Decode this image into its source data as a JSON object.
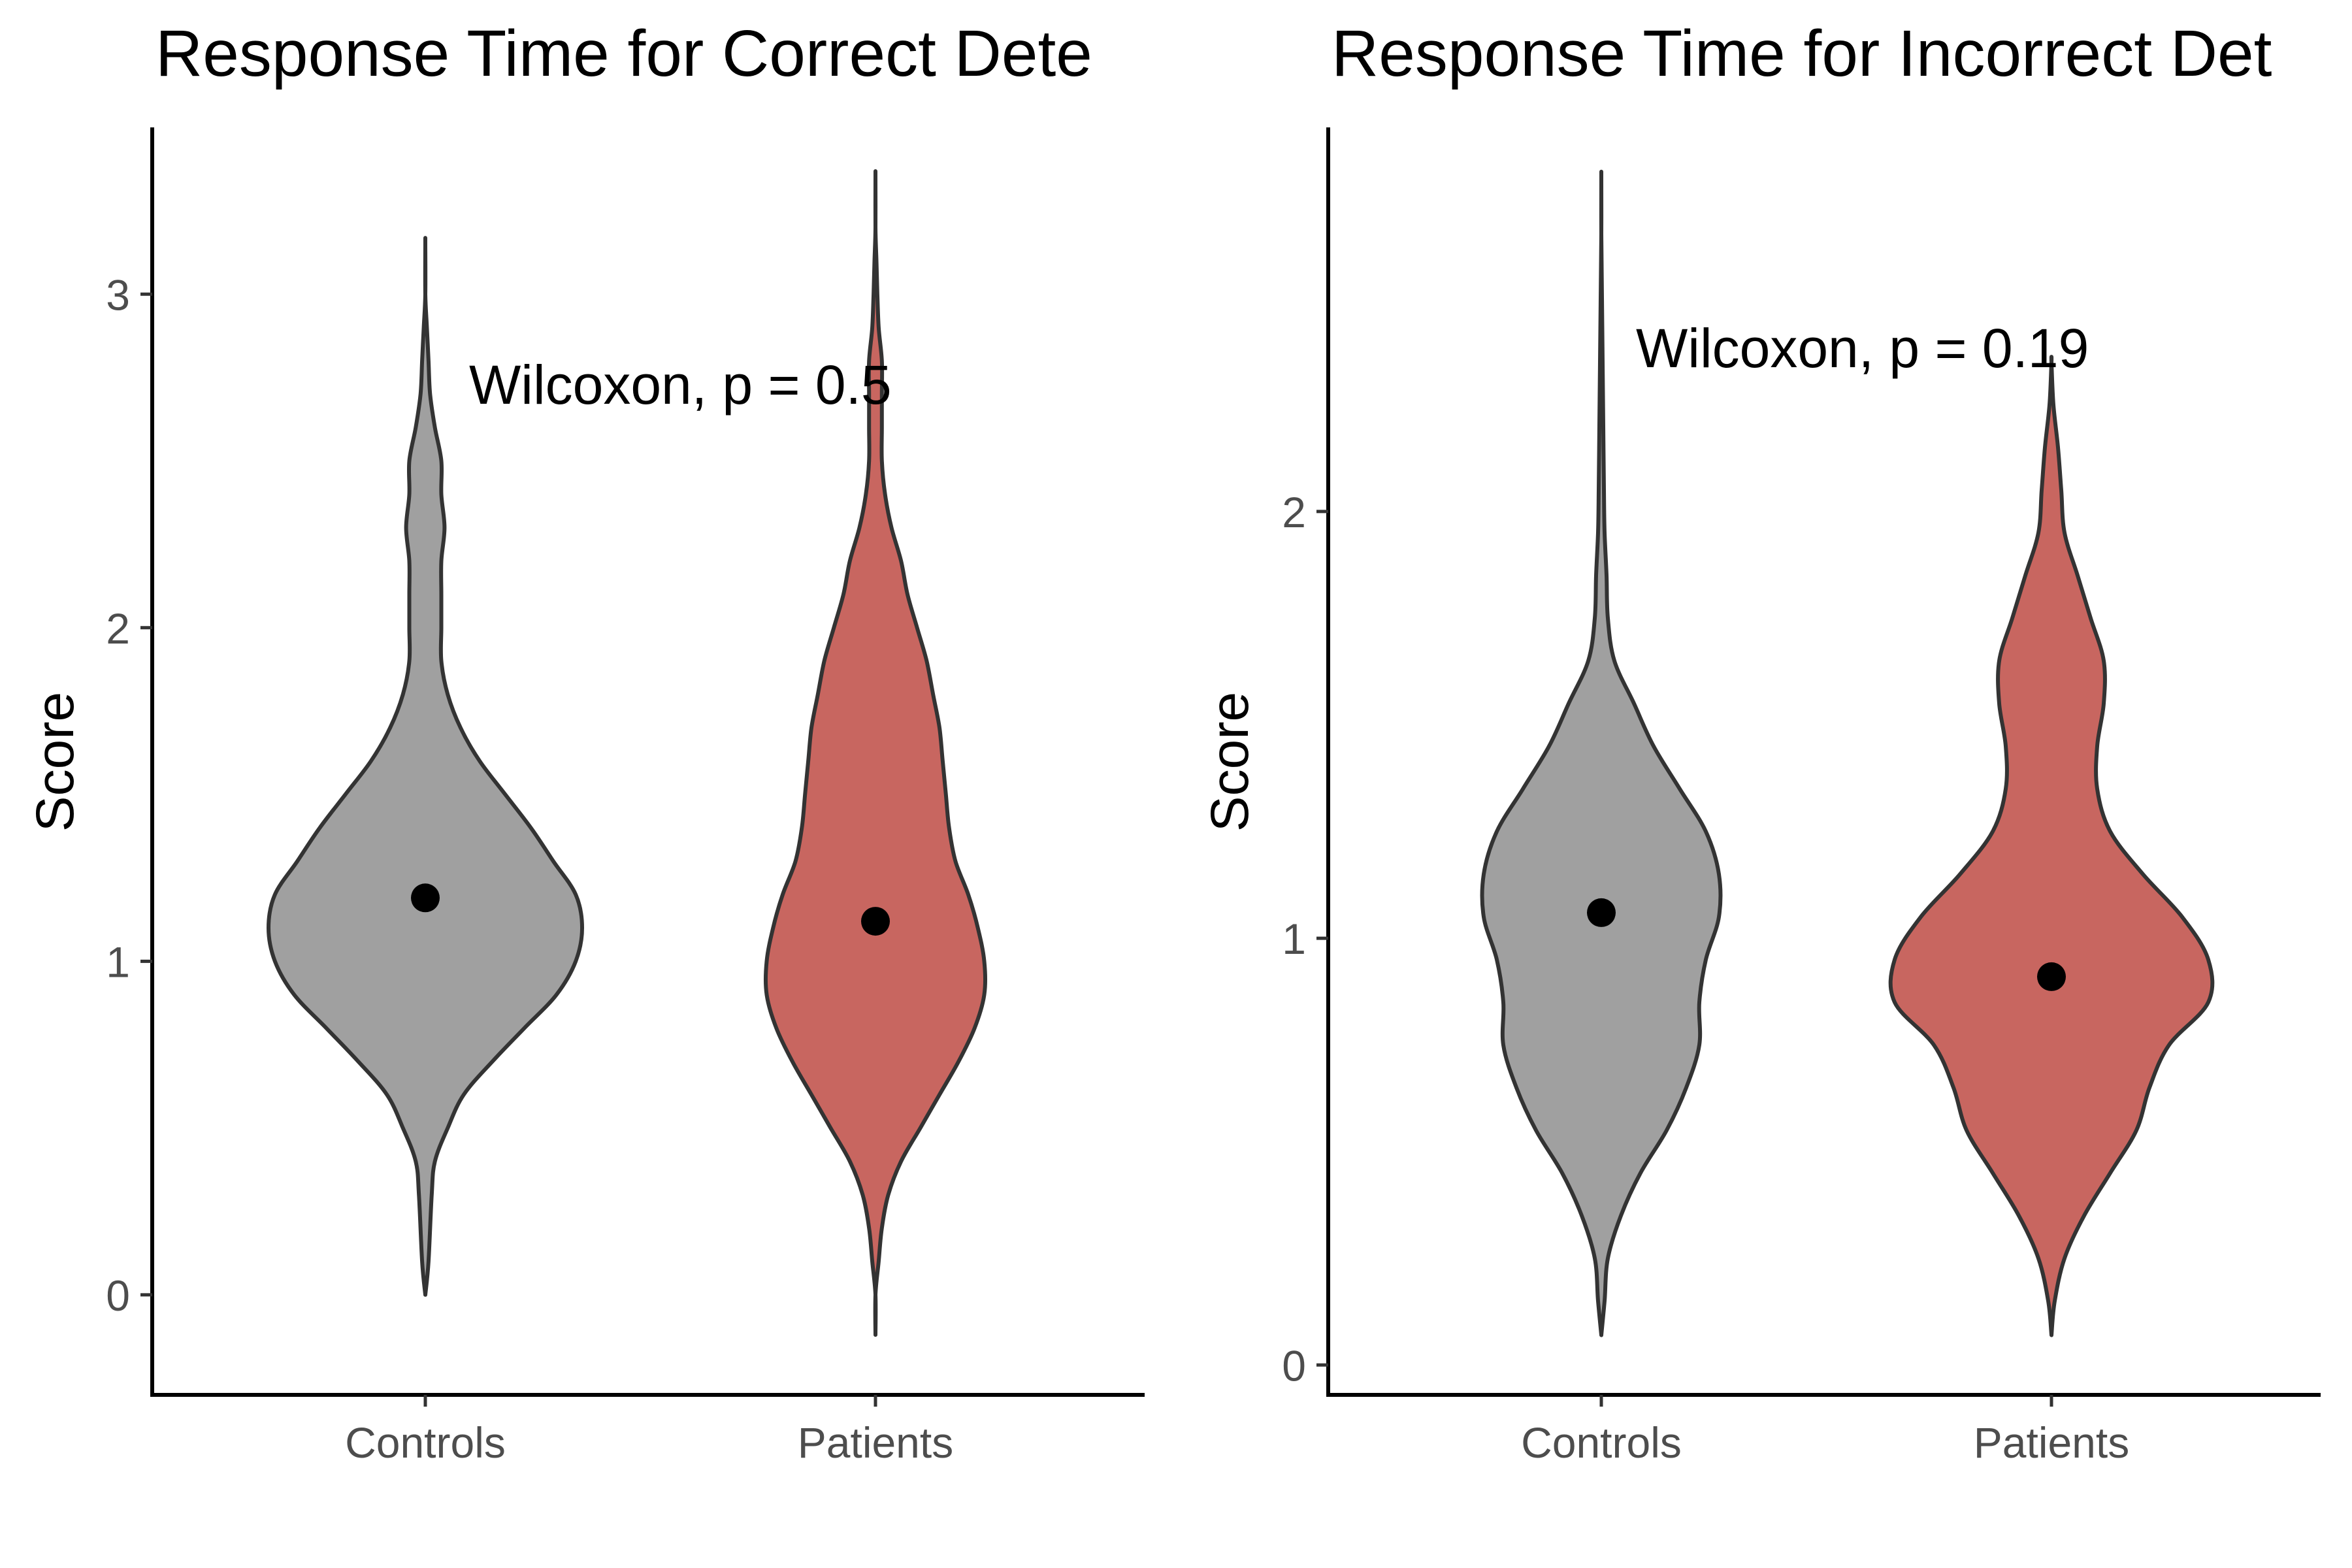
{
  "chart_data": [
    {
      "type": "violin",
      "title": "Response Time for Correct Dete",
      "xlabel": "",
      "ylabel": "Score",
      "ylim": [
        -0.3,
        3.5
      ],
      "yticks": [
        0,
        1,
        2,
        3
      ],
      "categories": [
        "Controls",
        "Patients"
      ],
      "fills": [
        "#a0a0a0",
        "#c86660"
      ],
      "annotation": "Wilcoxon, p = 0.5",
      "grid": false,
      "legend": "none",
      "series": [
        {
          "category": "Controls",
          "point": 1.19,
          "density": [
            [
              0.0,
              0.0
            ],
            [
              0.1,
              0.01
            ],
            [
              0.3,
              0.02
            ],
            [
              0.4,
              0.03
            ],
            [
              0.5,
              0.07
            ],
            [
              0.6,
              0.12
            ],
            [
              0.7,
              0.21
            ],
            [
              0.8,
              0.31
            ],
            [
              0.9,
              0.41
            ],
            [
              1.0,
              0.47
            ],
            [
              1.1,
              0.49
            ],
            [
              1.2,
              0.47
            ],
            [
              1.3,
              0.4
            ],
            [
              1.4,
              0.33
            ],
            [
              1.5,
              0.25
            ],
            [
              1.6,
              0.17
            ],
            [
              1.7,
              0.11
            ],
            [
              1.8,
              0.07
            ],
            [
              1.9,
              0.05
            ],
            [
              2.0,
              0.05
            ],
            [
              2.1,
              0.05
            ],
            [
              2.2,
              0.05
            ],
            [
              2.3,
              0.06
            ],
            [
              2.4,
              0.05
            ],
            [
              2.5,
              0.05
            ],
            [
              2.6,
              0.03
            ],
            [
              2.7,
              0.015
            ],
            [
              2.8,
              0.01
            ],
            [
              2.9,
              0.005
            ],
            [
              3.0,
              0.0
            ],
            [
              3.15,
              0.0
            ]
          ]
        },
        {
          "category": "Patients",
          "point": 1.12,
          "density": [
            [
              -0.12,
              0.0
            ],
            [
              0.0,
              0.0
            ],
            [
              0.1,
              0.01
            ],
            [
              0.2,
              0.02
            ],
            [
              0.3,
              0.04
            ],
            [
              0.4,
              0.08
            ],
            [
              0.5,
              0.14
            ],
            [
              0.6,
              0.2
            ],
            [
              0.7,
              0.26
            ],
            [
              0.8,
              0.31
            ],
            [
              0.9,
              0.34
            ],
            [
              1.0,
              0.34
            ],
            [
              1.1,
              0.32
            ],
            [
              1.2,
              0.29
            ],
            [
              1.3,
              0.25
            ],
            [
              1.4,
              0.23
            ],
            [
              1.5,
              0.22
            ],
            [
              1.6,
              0.21
            ],
            [
              1.7,
              0.2
            ],
            [
              1.8,
              0.18
            ],
            [
              1.9,
              0.16
            ],
            [
              2.0,
              0.13
            ],
            [
              2.1,
              0.1
            ],
            [
              2.2,
              0.08
            ],
            [
              2.3,
              0.05
            ],
            [
              2.4,
              0.03
            ],
            [
              2.5,
              0.02
            ],
            [
              2.6,
              0.02
            ],
            [
              2.7,
              0.02
            ],
            [
              2.8,
              0.02
            ],
            [
              2.9,
              0.01
            ],
            [
              3.0,
              0.006
            ],
            [
              3.1,
              0.003
            ],
            [
              3.2,
              0.0
            ],
            [
              3.35,
              0.0
            ]
          ]
        }
      ]
    },
    {
      "type": "violin",
      "title": "Response Time for Incorrect Det",
      "xlabel": "",
      "ylabel": "Score",
      "ylim": [
        -0.07,
        2.9
      ],
      "yticks": [
        0,
        1,
        2
      ],
      "categories": [
        "Controls",
        "Patients"
      ],
      "fills": [
        "#a0a0a0",
        "#c86660"
      ],
      "annotation": "Wilcoxon, p = 0.19",
      "grid": false,
      "legend": "none",
      "series": [
        {
          "category": "Controls",
          "point": 1.06,
          "density": [
            [
              0.07,
              0.0
            ],
            [
              0.15,
              0.005
            ],
            [
              0.25,
              0.01
            ],
            [
              0.35,
              0.03
            ],
            [
              0.45,
              0.06
            ],
            [
              0.55,
              0.1
            ],
            [
              0.65,
              0.13
            ],
            [
              0.75,
              0.15
            ],
            [
              0.85,
              0.15
            ],
            [
              0.95,
              0.16
            ],
            [
              1.05,
              0.18
            ],
            [
              1.15,
              0.18
            ],
            [
              1.25,
              0.16
            ],
            [
              1.35,
              0.12
            ],
            [
              1.45,
              0.08
            ],
            [
              1.55,
              0.05
            ],
            [
              1.65,
              0.02
            ],
            [
              1.75,
              0.01
            ],
            [
              1.85,
              0.008
            ],
            [
              1.95,
              0.005
            ],
            [
              2.05,
              0.004
            ],
            [
              2.2,
              0.003
            ],
            [
              2.35,
              0.002
            ],
            [
              2.5,
              0.001
            ],
            [
              2.65,
              0.0
            ],
            [
              2.78,
              0.0
            ]
          ]
        },
        {
          "category": "Patients",
          "point": 0.91,
          "density": [
            [
              0.07,
              0.0
            ],
            [
              0.15,
              0.005
            ],
            [
              0.25,
              0.02
            ],
            [
              0.35,
              0.05
            ],
            [
              0.45,
              0.09
            ],
            [
              0.55,
              0.13
            ],
            [
              0.65,
              0.15
            ],
            [
              0.75,
              0.18
            ],
            [
              0.85,
              0.24
            ],
            [
              0.95,
              0.24
            ],
            [
              1.05,
              0.2
            ],
            [
              1.15,
              0.14
            ],
            [
              1.25,
              0.09
            ],
            [
              1.35,
              0.07
            ],
            [
              1.45,
              0.07
            ],
            [
              1.55,
              0.08
            ],
            [
              1.65,
              0.08
            ],
            [
              1.75,
              0.06
            ],
            [
              1.85,
              0.04
            ],
            [
              1.95,
              0.02
            ],
            [
              2.05,
              0.015
            ],
            [
              2.15,
              0.01
            ],
            [
              2.25,
              0.003
            ],
            [
              2.35,
              0.0
            ]
          ]
        }
      ]
    }
  ]
}
